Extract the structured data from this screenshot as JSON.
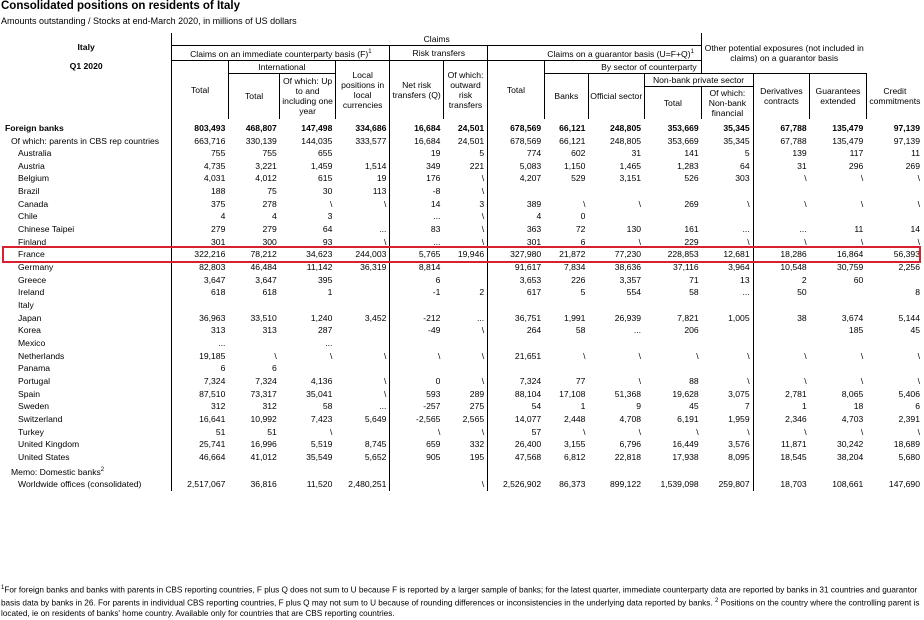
{
  "title": "Consolidated positions on residents of Italy",
  "subtitle": "Amounts outstanding / Stocks at end-March 2020, in millions of US dollars",
  "header": {
    "country": "Italy",
    "period": "Q1 2020",
    "claims": "Claims",
    "immediate": "Claims on an immediate counterparty basis (F)",
    "sup1": "1",
    "international": "International",
    "risk_transfers": "Risk transfers",
    "guarantor": "Claims on a guarantor basis (U=F+Q)",
    "by_sector": "By sector of counterparty",
    "nonbank_private": "Non-bank private sector",
    "other_exposures": "Other potential exposures (not included in claims) on a guarantor basis",
    "col_total": "Total",
    "col_intl_total": "Total",
    "col_upto1y": "Of which: Up to and including one year",
    "col_local": "Local positions in local currencies",
    "col_net_risk": "Net risk transfers (Q)",
    "col_outward": "Of which: outward risk transfers",
    "col_g_total": "Total",
    "col_banks": "Banks",
    "col_official": "Official sector",
    "col_nb_total": "Total",
    "col_nb_fin": "Of which: Non-bank financial",
    "col_deriv": "Derivatives contracts",
    "col_guar": "Guarantees extended",
    "col_credit": "Credit commitments"
  },
  "rows": [
    {
      "name": "Foreign banks",
      "style": "bold",
      "v": [
        "803,493",
        "468,807",
        "147,498",
        "334,686",
        "16,684",
        "24,501",
        "678,569",
        "66,121",
        "248,805",
        "353,669",
        "35,345",
        "67,788",
        "135,479",
        "97,139"
      ]
    },
    {
      "name": "Of which: parents in CBS rep countries",
      "style": "mid",
      "v": [
        "663,716",
        "330,139",
        "144,035",
        "333,577",
        "16,684",
        "24,501",
        "678,569",
        "66,121",
        "248,805",
        "353,669",
        "35,345",
        "67,788",
        "135,479",
        "97,139"
      ]
    },
    {
      "name": "Australia",
      "style": "sub",
      "v": [
        "755",
        "755",
        "655",
        "",
        "19",
        "5",
        "774",
        "602",
        "31",
        "141",
        "5",
        "139",
        "117",
        "11"
      ]
    },
    {
      "name": "Austria",
      "style": "sub",
      "v": [
        "4,735",
        "3,221",
        "1,459",
        "1,514",
        "349",
        "221",
        "5,083",
        "1,150",
        "1,465",
        "1,283",
        "64",
        "31",
        "296",
        "269"
      ]
    },
    {
      "name": "Belgium",
      "style": "sub",
      "v": [
        "4,031",
        "4,012",
        "615",
        "19",
        "176",
        "\\",
        "4,207",
        "529",
        "3,151",
        "526",
        "303",
        "\\",
        "\\",
        "\\"
      ]
    },
    {
      "name": "Brazil",
      "style": "sub",
      "v": [
        "188",
        "75",
        "30",
        "113",
        "-8",
        "\\",
        "",
        "",
        "",
        "",
        "",
        "",
        "",
        ""
      ]
    },
    {
      "name": "Canada",
      "style": "sub",
      "v": [
        "375",
        "278",
        "\\",
        "\\",
        "14",
        "3",
        "389",
        "\\",
        "\\",
        "269",
        "\\",
        "\\",
        "\\",
        "\\"
      ]
    },
    {
      "name": "Chile",
      "style": "sub",
      "v": [
        "4",
        "4",
        "3",
        "",
        "...",
        "\\",
        "4",
        "0",
        "",
        "",
        "",
        "",
        "",
        ""
      ]
    },
    {
      "name": "Chinese Taipei",
      "style": "sub",
      "v": [
        "279",
        "279",
        "64",
        "...",
        "83",
        "\\",
        "363",
        "72",
        "130",
        "161",
        "...",
        "...",
        "11",
        "14"
      ]
    },
    {
      "name": "Finland",
      "style": "sub",
      "v": [
        "301",
        "300",
        "93",
        "\\",
        "...",
        "\\",
        "301",
        "6",
        "\\",
        "229",
        "\\",
        "\\",
        "\\",
        "\\"
      ]
    },
    {
      "name": "France",
      "style": "sub",
      "v": [
        "322,216",
        "78,212",
        "34,623",
        "244,003",
        "5,765",
        "19,946",
        "327,980",
        "21,872",
        "77,230",
        "228,853",
        "12,681",
        "18,286",
        "16,864",
        "56,393"
      ]
    },
    {
      "name": "Germany",
      "style": "sub",
      "v": [
        "82,803",
        "46,484",
        "11,142",
        "36,319",
        "8,814",
        "",
        "91,617",
        "7,834",
        "38,636",
        "37,116",
        "3,964",
        "10,548",
        "30,759",
        "2,256"
      ]
    },
    {
      "name": "Greece",
      "style": "sub",
      "v": [
        "3,647",
        "3,647",
        "395",
        "",
        "6",
        "",
        "3,653",
        "226",
        "3,357",
        "71",
        "13",
        "2",
        "60",
        ""
      ]
    },
    {
      "name": "Ireland",
      "style": "sub",
      "v": [
        "618",
        "618",
        "1",
        "",
        "-1",
        "2",
        "617",
        "5",
        "554",
        "58",
        "...",
        "50",
        "",
        "8"
      ]
    },
    {
      "name": "Italy",
      "style": "sub",
      "v": [
        "",
        "",
        "",
        "",
        "",
        "",
        "",
        "",
        "",
        "",
        "",
        "",
        "",
        ""
      ]
    },
    {
      "name": "Japan",
      "style": "sub",
      "v": [
        "36,963",
        "33,510",
        "1,240",
        "3,452",
        "-212",
        "...",
        "36,751",
        "1,991",
        "26,939",
        "7,821",
        "1,005",
        "38",
        "3,674",
        "5,144"
      ]
    },
    {
      "name": "Korea",
      "style": "sub",
      "v": [
        "313",
        "313",
        "287",
        "",
        "-49",
        "\\",
        "264",
        "58",
        "...",
        "206",
        "",
        "",
        "185",
        "45"
      ]
    },
    {
      "name": "Mexico",
      "style": "sub",
      "v": [
        "...",
        "",
        "...",
        "",
        "",
        "",
        "",
        "",
        "",
        "",
        "",
        "",
        "",
        ""
      ]
    },
    {
      "name": "Netherlands",
      "style": "sub",
      "v": [
        "19,185",
        "\\",
        "\\",
        "\\",
        "\\",
        "\\",
        "21,651",
        "\\",
        "\\",
        "\\",
        "\\",
        "\\",
        "\\",
        "\\"
      ]
    },
    {
      "name": "Panama",
      "style": "sub",
      "v": [
        "6",
        "6",
        "",
        "",
        "",
        "",
        "",
        "",
        "",
        "",
        "",
        "",
        "",
        ""
      ]
    },
    {
      "name": "Portugal",
      "style": "sub",
      "v": [
        "7,324",
        "7,324",
        "4,136",
        "\\",
        "0",
        "\\",
        "7,324",
        "77",
        "\\",
        "88",
        "\\",
        "\\",
        "\\",
        "\\"
      ]
    },
    {
      "name": "Spain",
      "style": "sub",
      "v": [
        "87,510",
        "73,317",
        "35,041",
        "\\",
        "593",
        "289",
        "88,104",
        "17,108",
        "51,368",
        "19,628",
        "3,075",
        "2,781",
        "8,065",
        "5,406"
      ]
    },
    {
      "name": "Sweden",
      "style": "sub",
      "v": [
        "312",
        "312",
        "58",
        "...",
        "-257",
        "275",
        "54",
        "1",
        "9",
        "45",
        "7",
        "1",
        "18",
        "6"
      ]
    },
    {
      "name": "Switzerland",
      "style": "sub",
      "v": [
        "16,641",
        "10,992",
        "7,423",
        "5,649",
        "-2,565",
        "2,565",
        "14,077",
        "2,448",
        "4,708",
        "6,191",
        "1,959",
        "2,346",
        "4,703",
        "2,391"
      ]
    },
    {
      "name": "Turkey",
      "style": "sub",
      "v": [
        "51",
        "51",
        "\\",
        "",
        "\\",
        "\\",
        "57",
        "\\",
        "\\",
        "\\",
        "\\",
        "\\",
        "\\",
        "\\"
      ]
    },
    {
      "name": "United Kingdom",
      "style": "sub",
      "v": [
        "25,741",
        "16,996",
        "5,519",
        "8,745",
        "659",
        "332",
        "26,400",
        "3,155",
        "6,796",
        "16,449",
        "3,576",
        "11,871",
        "30,242",
        "18,689"
      ]
    },
    {
      "name": "United States",
      "style": "sub",
      "v": [
        "46,664",
        "41,012",
        "35,549",
        "5,652",
        "905",
        "195",
        "47,568",
        "6,812",
        "22,818",
        "17,938",
        "8,095",
        "18,545",
        "38,204",
        "5,680"
      ]
    },
    {
      "name": "Memo: Domestic banks",
      "style": "memo",
      "sup": "2",
      "v": [
        "",
        "",
        "",
        "",
        "",
        "",
        "",
        "",
        "",
        "",
        "",
        "",
        "",
        ""
      ]
    },
    {
      "name": "Worldwide offices (consolidated)",
      "style": "sub",
      "v": [
        "2,517,067",
        "36,816",
        "11,520",
        "2,480,251",
        "",
        "\\",
        "2,526,902",
        "86,373",
        "899,122",
        "1,539,098",
        "259,807",
        "18,703",
        "108,661",
        "147,690"
      ]
    }
  ],
  "footnote": {
    "sup1": "1",
    "text1": "For foreign banks and banks with parents in CBS reporting countries, F plus Q does not sum to U because F is reported by a larger sample of banks; for the latest quarter, immediate counterparty data are reported by banks in 31 countries and guarantor basis data by banks in 26. For parents in individual CBS reporting countries, F plus Q may not sum to U because of rounding differences or inconsistencies in the underlying data reported by banks.",
    "sup2": "2",
    "text2": "Positions on the country where the controlling parent is located, ie on residents of banks' home country. Available only for countries that are CBS reporting countries."
  },
  "highlight_color": "#d9202f"
}
